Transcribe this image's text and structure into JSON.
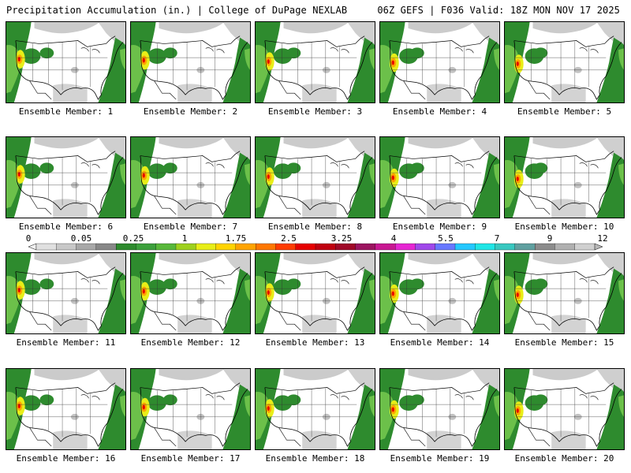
{
  "header": {
    "left": "Precipitation Accumulation (in.) | College of DuPage NEXLAB",
    "right": "06Z GEFS | F036 Valid: 18Z MON NOV 17 2025"
  },
  "members": [
    "Ensemble Member: 1",
    "Ensemble Member: 2",
    "Ensemble Member: 3",
    "Ensemble Member: 4",
    "Ensemble Member: 5",
    "Ensemble Member: 6",
    "Ensemble Member: 7",
    "Ensemble Member: 8",
    "Ensemble Member: 9",
    "Ensemble Member: 10",
    "Ensemble Member: 11",
    "Ensemble Member: 12",
    "Ensemble Member: 13",
    "Ensemble Member: 14",
    "Ensemble Member: 15",
    "Ensemble Member: 16",
    "Ensemble Member: 17",
    "Ensemble Member: 18",
    "Ensemble Member: 19",
    "Ensemble Member: 20"
  ],
  "colorbar": {
    "tick_labels": [
      "0",
      "0.05",
      "0.25",
      "1",
      "1.75",
      "2.5",
      "3.25",
      "4",
      "5.5",
      "7",
      "9",
      "12"
    ],
    "colors": [
      "#e0e0e0",
      "#c8c8c8",
      "#a8a8a8",
      "#888888",
      "#2e8b2e",
      "#3ca03c",
      "#58b83a",
      "#9ed11e",
      "#e8ee18",
      "#ffd400",
      "#ffa400",
      "#ff7800",
      "#ff3c00",
      "#e60000",
      "#c00010",
      "#a00828",
      "#9c1460",
      "#c81892",
      "#e626d2",
      "#a048ea",
      "#6878ff",
      "#24c8ff",
      "#20e6e6",
      "#38c8c0",
      "#60a0a0",
      "#8c8c8c",
      "#b0b0b0",
      "#d0d0d0"
    ]
  },
  "colors": {
    "green": "#2e8b2e",
    "light_green": "#6cc04a",
    "yellow": "#e8ee18",
    "orange": "#ffa400",
    "red": "#e60000",
    "grey": "#a8a8a8"
  }
}
